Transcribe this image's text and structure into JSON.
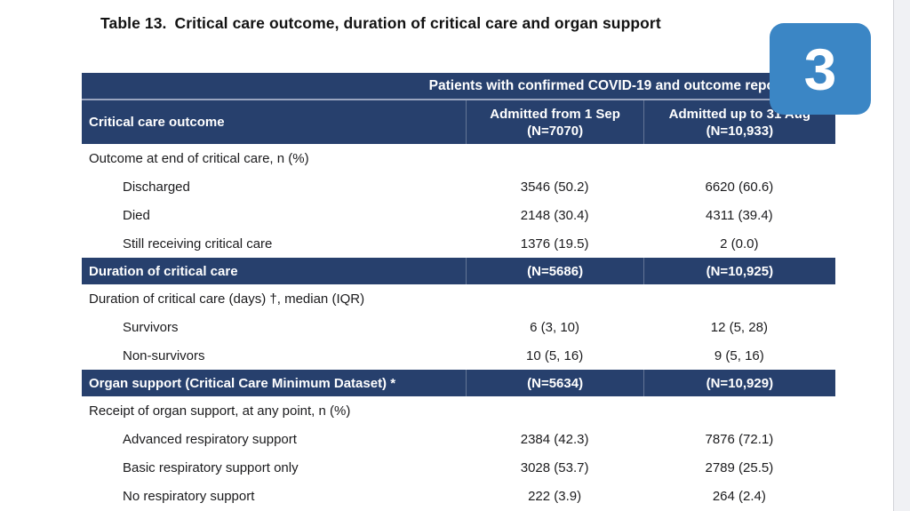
{
  "colors": {
    "band_navy": "#27406d",
    "badge_blue": "#3b86c5"
  },
  "title": {
    "prefix": "Table 13.",
    "text": "Critical care outcome, duration of critical care and organ support"
  },
  "badge": {
    "label": "3"
  },
  "scrollbar": {
    "present": true
  },
  "table": {
    "spanner": "Patients with confirmed COVID-19 and outcome reported",
    "columns": [
      {
        "label": "Critical care outcome"
      },
      {
        "line1": "Admitted from 1 Sep",
        "line2": "(N=7070)"
      },
      {
        "line1": "Admitted up to 31 Aug",
        "line2": "(N=10,933)"
      }
    ],
    "rows": [
      {
        "type": "group",
        "label": "Outcome at end of critical care, n (%)",
        "col2": "",
        "col3": ""
      },
      {
        "type": "item",
        "label": "Discharged",
        "col2": "3546 (50.2)",
        "col3": "6620 (60.6)"
      },
      {
        "type": "item",
        "label": "Died",
        "col2": "2148 (30.4)",
        "col3": "4311 (39.4)"
      },
      {
        "type": "item",
        "label": "Still receiving critical care",
        "col2": "1376 (19.5)",
        "col3": "2 (0.0)"
      },
      {
        "type": "band",
        "label": "Duration of critical care",
        "col2": "(N=5686)",
        "col3": "(N=10,925)"
      },
      {
        "type": "group",
        "label": "Duration of critical care (days) †, median (IQR)",
        "col2": "",
        "col3": ""
      },
      {
        "type": "item",
        "label": "Survivors",
        "col2": "6 (3, 10)",
        "col3": "12 (5, 28)"
      },
      {
        "type": "item",
        "label": "Non-survivors",
        "col2": "10 (5, 16)",
        "col3": "9 (5, 16)"
      },
      {
        "type": "band",
        "label": "Organ support (Critical Care Minimum Dataset) *",
        "col2": "(N=5634)",
        "col3": "(N=10,929)"
      },
      {
        "type": "group",
        "label": "Receipt of organ support, at any point, n (%)",
        "col2": "",
        "col3": ""
      },
      {
        "type": "item",
        "label": "Advanced respiratory support",
        "col2": "2384 (42.3)",
        "col3": "7876 (72.1)"
      },
      {
        "type": "item",
        "label": "Basic respiratory support only",
        "col2": "3028 (53.7)",
        "col3": "2789 (25.5)"
      },
      {
        "type": "item",
        "label": "No respiratory support",
        "col2": "222 (3.9)",
        "col3": "264 (2.4)"
      }
    ]
  }
}
